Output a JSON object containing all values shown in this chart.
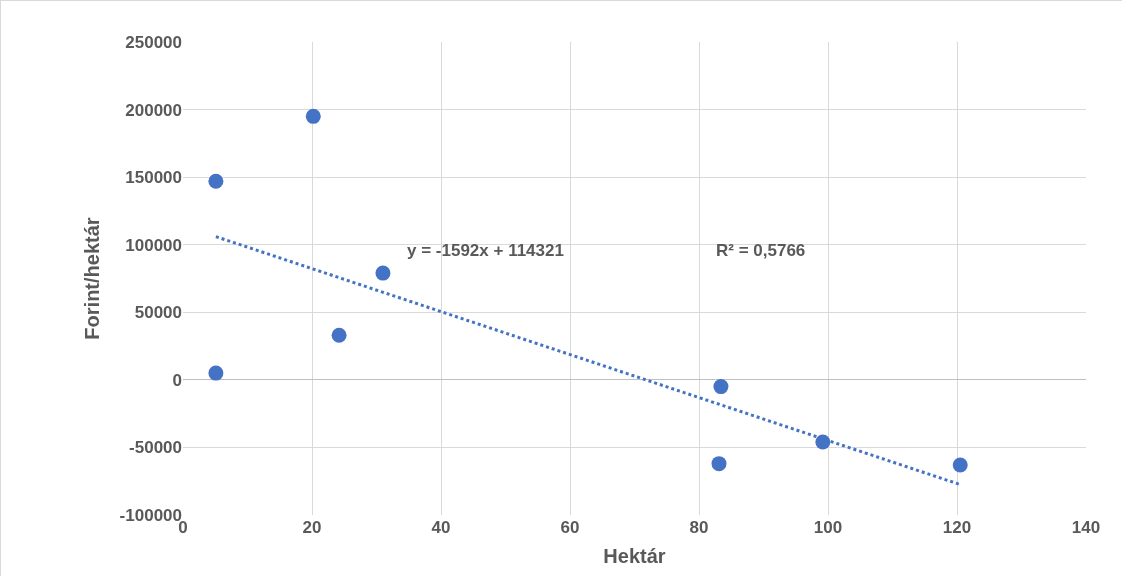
{
  "chart_data": {
    "type": "scatter",
    "xlabel": "Hektár",
    "ylabel": "Forint/hektár",
    "annotations": [
      "y = -1592x + 114321",
      "R² = 0,5766"
    ],
    "series": [
      {
        "color": "#4472c4",
        "x": [
          5.1,
          5.1,
          20.2,
          24.2,
          31,
          83.4,
          83.1,
          99.2,
          120.5
        ],
        "values": [
          147000,
          5000,
          195000,
          33000,
          79000,
          -5000,
          -62000,
          -46000,
          -63000
        ],
        "marker": "circle"
      },
      {
        "type": "line",
        "color": "#4472c4",
        "x": [
          5.1,
          120.5
        ],
        "values": [
          106000,
          -77500
        ],
        "line_style": "dotted",
        "marker": "none"
      }
    ],
    "xlim": [
      0,
      140
    ],
    "xticks": [
      0,
      20,
      40,
      60,
      80,
      100,
      120,
      140
    ],
    "ylim": [
      -100000,
      250000
    ],
    "yticks": [
      -100000,
      -50000,
      0,
      50000,
      100000,
      150000,
      200000,
      250000
    ],
    "grid": true,
    "legend": false
  }
}
